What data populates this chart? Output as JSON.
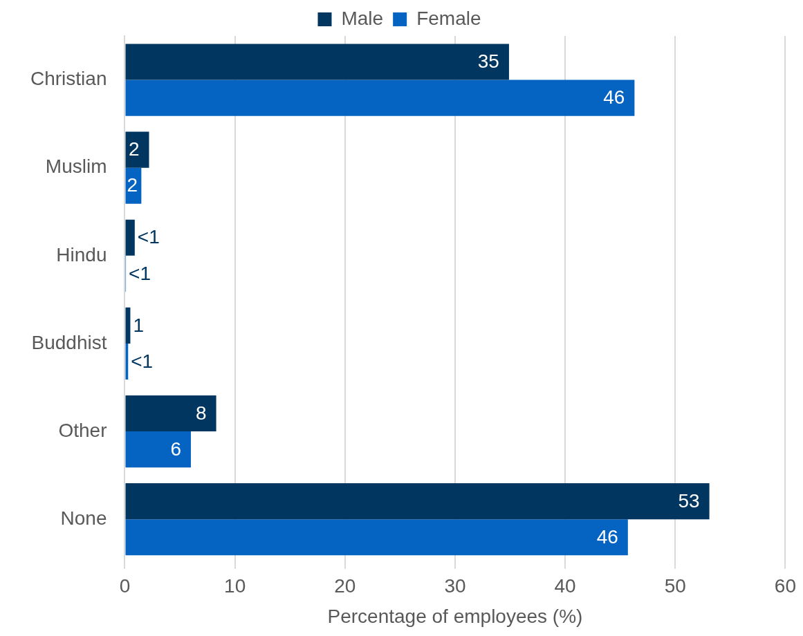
{
  "chart_data": {
    "type": "bar",
    "orientation": "horizontal",
    "categories": [
      "Christian",
      "Muslim",
      "Hindu",
      "Buddhist",
      "Other",
      "None"
    ],
    "series": [
      {
        "name": "Male",
        "color": "#003660",
        "values": [
          34.9,
          2.2,
          0.9,
          0.5,
          8.3,
          53.1
        ],
        "value_labels": [
          "35",
          "2",
          "<1",
          "1",
          "8",
          "53"
        ]
      },
      {
        "name": "Female",
        "color": "#0563c1",
        "values": [
          46.3,
          1.5,
          0.1,
          0.3,
          6.0,
          45.7
        ],
        "value_labels": [
          "46",
          "2",
          "<1",
          "<1",
          "6",
          "46"
        ]
      }
    ],
    "xlabel": "Percentage of employees (%)",
    "xlim": [
      0,
      60
    ],
    "xticks": [
      0,
      10,
      20,
      30,
      40,
      50,
      60
    ],
    "grid": "x",
    "legend": "top"
  }
}
